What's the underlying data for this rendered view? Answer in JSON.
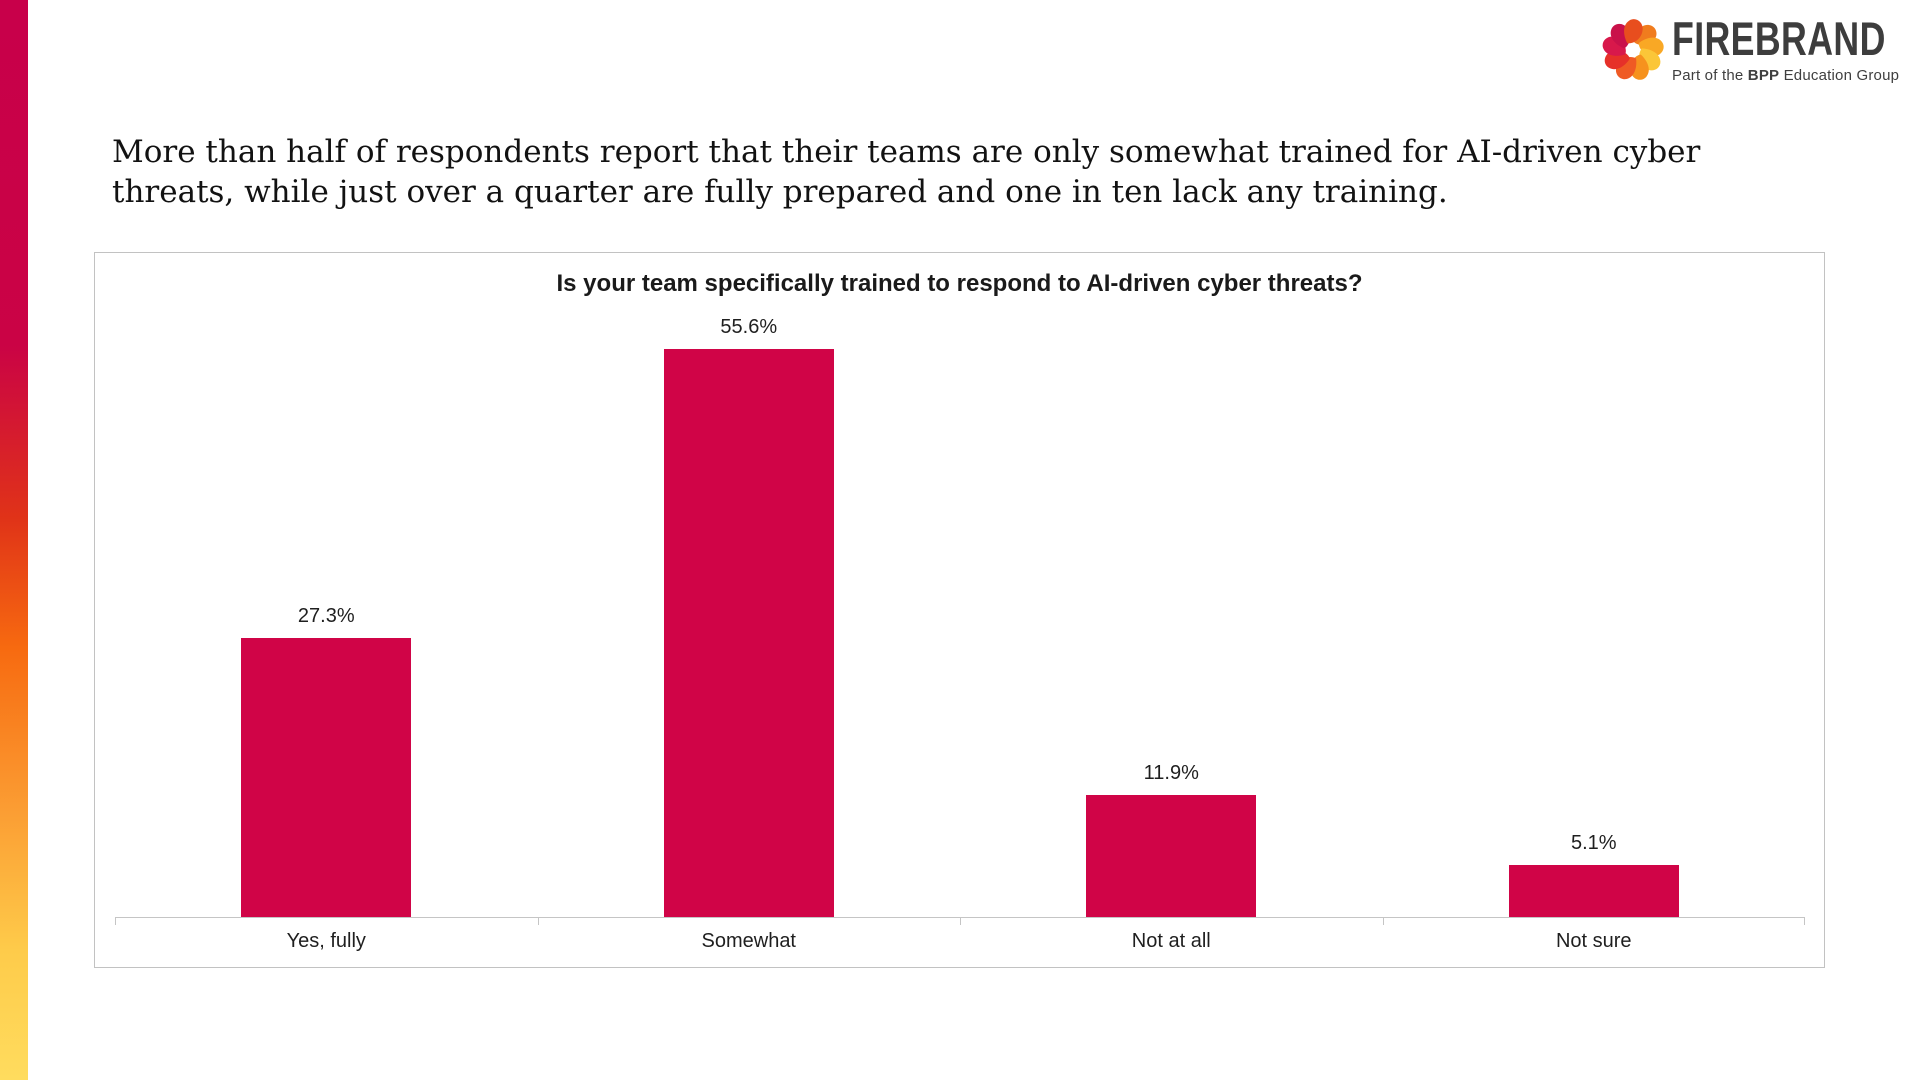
{
  "logo": {
    "wordmark": "FIREBRAND",
    "tagline_prefix": "Part of the ",
    "tagline_bold": "BPP",
    "tagline_suffix": " Education Group",
    "icon_petal_colors": [
      "#F07C1E",
      "#F9A825",
      "#FBC638",
      "#F6921E",
      "#EF5A24",
      "#E63029",
      "#D8184B",
      "#C9114A",
      "#E84E1E"
    ]
  },
  "headline": {
    "line1": "More than half of respondents report that their teams are only somewhat trained for AI-driven cyber",
    "line2": "threats, while just over a quarter are fully prepared and one in ten lack any training."
  },
  "chart_data": {
    "type": "bar",
    "title": "Is your team specifically trained to respond to AI-driven cyber threats?",
    "categories": [
      "Yes, fully",
      "Somewhat",
      "Not at all",
      "Not sure"
    ],
    "values": [
      27.3,
      55.6,
      11.9,
      5.1
    ],
    "value_labels": [
      "27.3%",
      "55.6%",
      "11.9%",
      "5.1%"
    ],
    "xlabel": "",
    "ylabel": "",
    "ylim": [
      0,
      60
    ],
    "grid": false,
    "legend": false,
    "bar_color": "#d00447"
  },
  "theme": {
    "bar_color": "#d00447",
    "accent_gradient": [
      "#c8004a",
      "#ca0345",
      "#e03318",
      "#f76a10",
      "#fb9d33",
      "#fecb4a",
      "#ffdc5e"
    ],
    "accent_gradient_stops": [
      "0%",
      "32%",
      "48%",
      "60%",
      "75%",
      "88%",
      "100%"
    ],
    "wordmark_color": "#3d3d3d",
    "panel_border_color": "#c2c2c2"
  }
}
